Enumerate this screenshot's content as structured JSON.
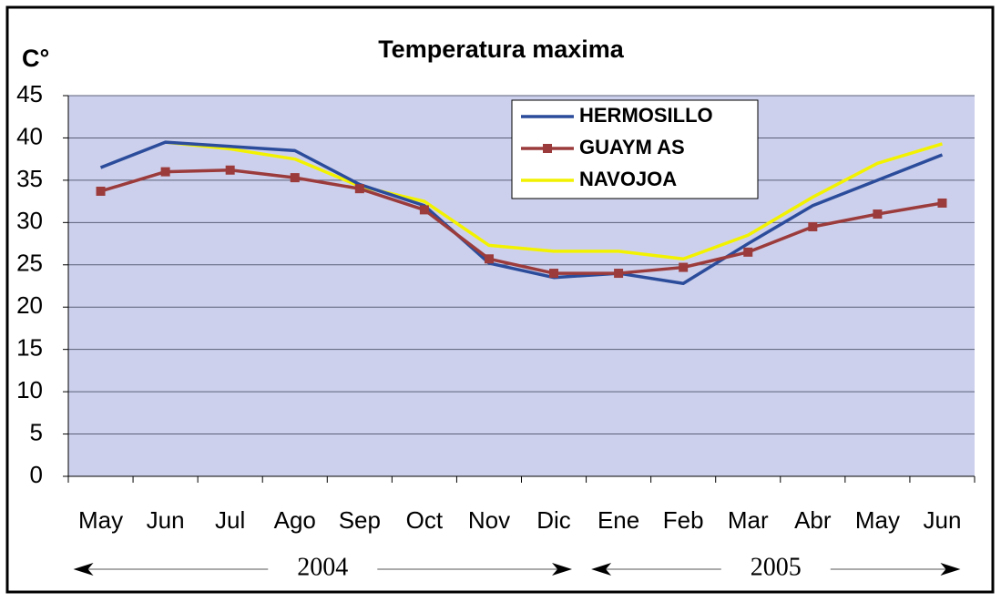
{
  "chart_data": {
    "type": "line",
    "title": "Temperatura maxima",
    "y_label": "C°",
    "categories": [
      "May",
      "Jun",
      "Jul",
      "Ago",
      "Sep",
      "Oct",
      "Nov",
      "Dic",
      "Ene",
      "Feb",
      "Mar",
      "Abr",
      "May",
      "Jun"
    ],
    "series": [
      {
        "name": "HERMOSILLO",
        "color": "#2b4c9b",
        "values": [
          36.5,
          39.5,
          39,
          38.5,
          34.5,
          32,
          25.2,
          23.5,
          24,
          22.8,
          27.5,
          32,
          35,
          38
        ]
      },
      {
        "name": "GUAYM AS",
        "color": "#9b3b3b",
        "marker": "square",
        "values": [
          33.7,
          36,
          36.2,
          35.3,
          34,
          31.5,
          25.7,
          24,
          24,
          24.7,
          26.5,
          29.5,
          31,
          32.3
        ]
      },
      {
        "name": "NAVOJOA",
        "color": "#f2f200",
        "values": [
          null,
          39.5,
          38.7,
          37.5,
          34.3,
          32.5,
          27.3,
          26.6,
          26.6,
          25.7,
          28.5,
          33,
          37,
          39.3
        ]
      }
    ],
    "ylim": [
      0,
      45
    ],
    "yticks": [
      0,
      5,
      10,
      15,
      20,
      25,
      30,
      35,
      40,
      45
    ],
    "grid": true,
    "legend": "top-right",
    "period_labels": [
      "2004",
      "2005"
    ]
  }
}
